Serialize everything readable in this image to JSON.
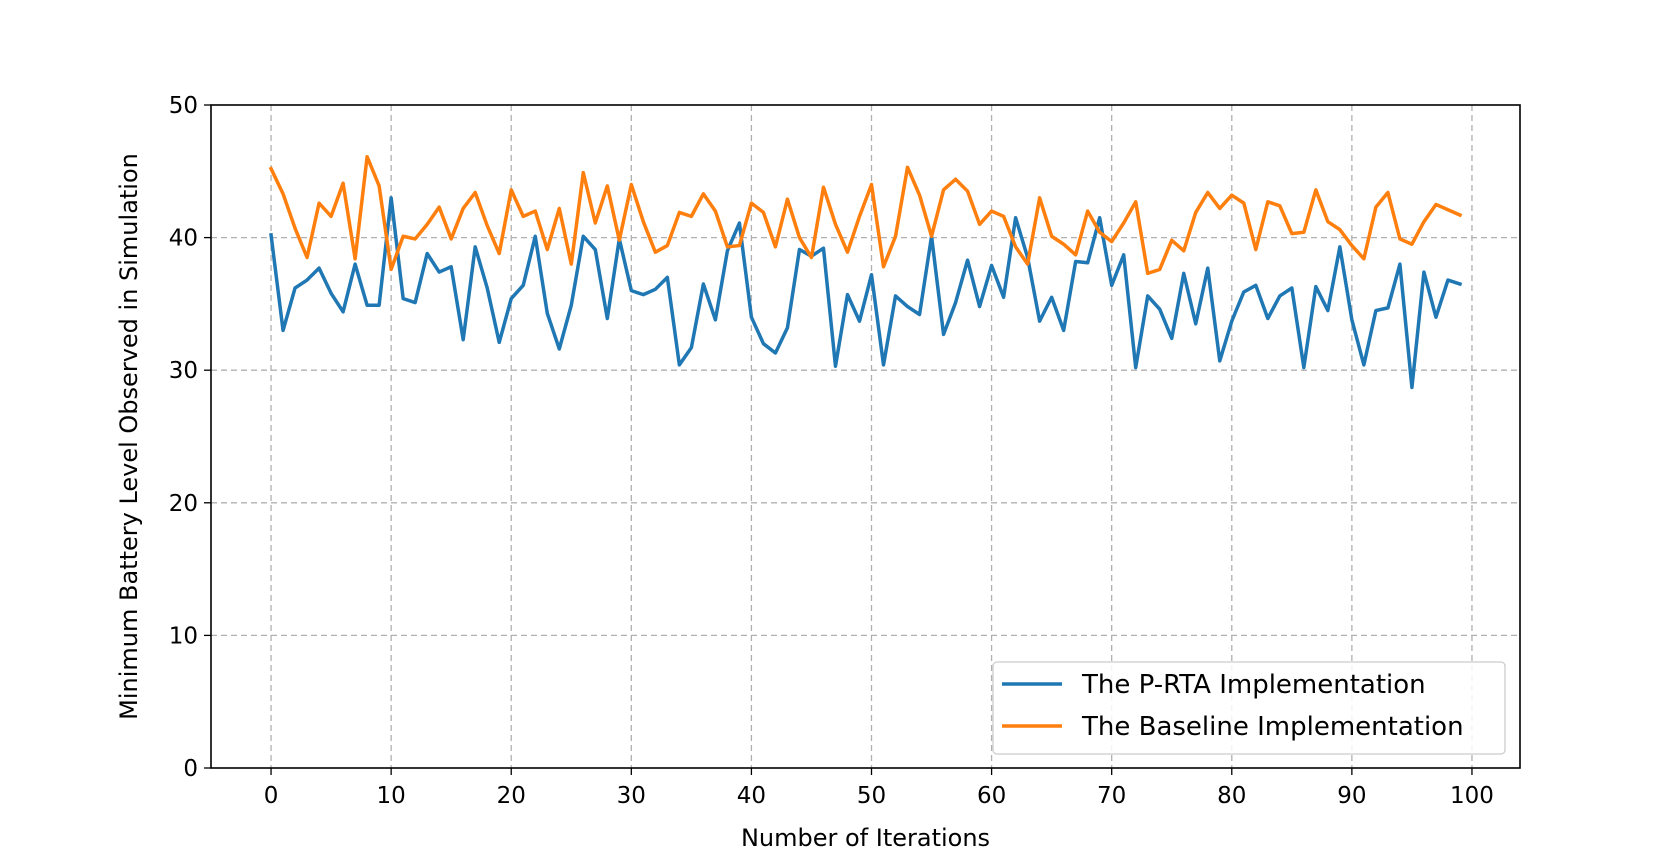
{
  "chart_data": {
    "type": "line",
    "title": "",
    "xlabel": "Number of Iterations",
    "ylabel": "Minimum Battery Level Observed in Simulation",
    "xlim": [
      -5,
      104
    ],
    "ylim": [
      0,
      50
    ],
    "xticks": [
      0,
      10,
      20,
      30,
      40,
      50,
      60,
      70,
      80,
      90,
      100
    ],
    "yticks": [
      0,
      10,
      20,
      30,
      40,
      50
    ],
    "grid": true,
    "legend_position": "lower-right",
    "series": [
      {
        "name": "The P-RTA Implementation",
        "color": "#1f77b4",
        "x": [
          0,
          1,
          2,
          3,
          4,
          5,
          6,
          7,
          8,
          9,
          10,
          11,
          12,
          13,
          14,
          15,
          16,
          17,
          18,
          19,
          20,
          21,
          22,
          23,
          24,
          25,
          26,
          27,
          28,
          29,
          30,
          31,
          32,
          33,
          34,
          35,
          36,
          37,
          38,
          39,
          40,
          41,
          42,
          43,
          44,
          45,
          46,
          47,
          48,
          49,
          50,
          51,
          52,
          53,
          54,
          55,
          56,
          57,
          58,
          59,
          60,
          61,
          62,
          63,
          64,
          65,
          66,
          67,
          68,
          69,
          70,
          71,
          72,
          73,
          74,
          75,
          76,
          77,
          78,
          79,
          80,
          81,
          82,
          83,
          84,
          85,
          86,
          87,
          88,
          89,
          90,
          91,
          92,
          93,
          94,
          95,
          96,
          97,
          98,
          99
        ],
        "values": [
          40.2,
          33.0,
          36.2,
          36.8,
          37.7,
          35.8,
          34.4,
          38.0,
          34.9,
          34.9,
          43.0,
          35.4,
          35.1,
          38.8,
          37.4,
          37.8,
          32.3,
          39.3,
          36.2,
          32.1,
          35.4,
          36.4,
          40.1,
          34.3,
          31.6,
          34.9,
          40.1,
          39.1,
          33.9,
          39.9,
          36.0,
          35.7,
          36.1,
          37.0,
          30.4,
          31.7,
          36.5,
          33.8,
          39.0,
          41.1,
          34.0,
          32.0,
          31.3,
          33.2,
          39.1,
          38.6,
          39.2,
          30.3,
          35.7,
          33.7,
          37.2,
          30.4,
          35.6,
          34.8,
          34.2,
          40.1,
          32.7,
          35.1,
          38.3,
          34.8,
          37.9,
          35.5,
          41.5,
          38.5,
          33.7,
          35.5,
          33.0,
          38.2,
          38.1,
          41.5,
          36.4,
          38.7,
          30.2,
          35.6,
          34.6,
          32.4,
          37.3,
          33.5,
          37.7,
          30.7,
          33.7,
          35.9,
          36.4,
          33.9,
          35.6,
          36.2,
          30.2,
          36.3,
          34.5,
          39.3,
          33.8,
          30.4,
          34.5,
          34.7,
          38.0,
          28.7,
          37.4,
          34.0,
          36.8,
          36.5
        ]
      },
      {
        "name": "The Baseline Implementation",
        "color": "#ff7f0e",
        "x": [
          0,
          1,
          2,
          3,
          4,
          5,
          6,
          7,
          8,
          9,
          10,
          11,
          12,
          13,
          14,
          15,
          16,
          17,
          18,
          19,
          20,
          21,
          22,
          23,
          24,
          25,
          26,
          27,
          28,
          29,
          30,
          31,
          32,
          33,
          34,
          35,
          36,
          37,
          38,
          39,
          40,
          41,
          42,
          43,
          44,
          45,
          46,
          47,
          48,
          49,
          50,
          51,
          52,
          53,
          54,
          55,
          56,
          57,
          58,
          59,
          60,
          61,
          62,
          63,
          64,
          65,
          66,
          67,
          68,
          69,
          70,
          71,
          72,
          73,
          74,
          75,
          76,
          77,
          78,
          79,
          80,
          81,
          82,
          83,
          84,
          85,
          86,
          87,
          88,
          89,
          90,
          91,
          92,
          93,
          94,
          95,
          96,
          97,
          98,
          99
        ],
        "values": [
          45.2,
          43.3,
          40.7,
          38.5,
          42.6,
          41.6,
          44.1,
          38.4,
          46.1,
          43.9,
          37.6,
          40.1,
          39.9,
          41.0,
          42.3,
          39.9,
          42.2,
          43.4,
          40.9,
          38.8,
          43.6,
          41.6,
          42.0,
          39.1,
          42.2,
          38.0,
          44.9,
          41.1,
          43.9,
          39.8,
          44.0,
          41.2,
          38.9,
          39.4,
          41.9,
          41.6,
          43.3,
          42.0,
          39.3,
          39.4,
          42.6,
          41.9,
          39.3,
          42.9,
          40.0,
          38.5,
          43.8,
          41.0,
          38.9,
          41.6,
          44.0,
          37.8,
          40.1,
          45.3,
          43.2,
          40.1,
          43.6,
          44.4,
          43.5,
          41.0,
          42.0,
          41.6,
          39.3,
          38.0,
          43.0,
          40.1,
          39.5,
          38.7,
          42.0,
          40.4,
          39.7,
          41.1,
          42.7,
          37.3,
          37.6,
          39.8,
          39.0,
          41.9,
          43.4,
          42.2,
          43.2,
          42.6,
          39.1,
          42.7,
          42.4,
          40.3,
          40.4,
          43.6,
          41.2,
          40.6,
          39.4,
          38.4,
          42.3,
          43.4,
          39.9,
          39.5,
          41.2,
          42.5,
          42.1,
          41.7
        ]
      }
    ]
  }
}
